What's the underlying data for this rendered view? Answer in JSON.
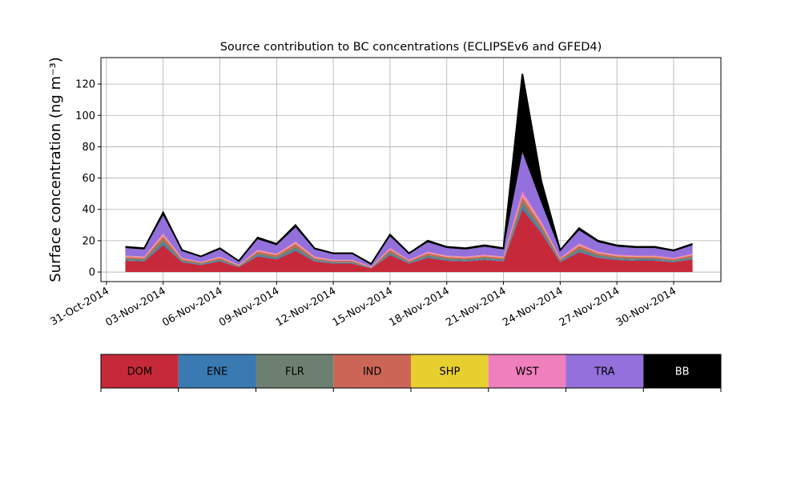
{
  "chart_data": {
    "type": "stacked_area",
    "title": "Source contribution to BC concentrations (ECLIPSEv6 and GFED4)",
    "y_label": "Surface concentration (ng m⁻³)",
    "x": [
      "2014-11-01",
      "2014-11-02",
      "2014-11-03",
      "2014-11-04",
      "2014-11-05",
      "2014-11-06",
      "2014-11-07",
      "2014-11-08",
      "2014-11-09",
      "2014-11-10",
      "2014-11-11",
      "2014-11-12",
      "2014-11-13",
      "2014-11-14",
      "2014-11-15",
      "2014-11-16",
      "2014-11-17",
      "2014-11-18",
      "2014-11-19",
      "2014-11-20",
      "2014-11-21",
      "2014-11-22",
      "2014-11-23",
      "2014-11-24",
      "2014-11-25",
      "2014-11-26",
      "2014-11-27",
      "2014-11-28",
      "2014-11-29",
      "2014-11-30",
      "2014-12-01"
    ],
    "series": [
      {
        "name": "DOM",
        "color": "#c62a3a",
        "values": [
          7.2,
          6.8,
          17.1,
          6.3,
          4.5,
          6.8,
          3.2,
          9.9,
          8.1,
          13.5,
          6.8,
          5.4,
          5.4,
          2.3,
          10.8,
          5.4,
          9,
          7.2,
          6.8,
          7.7,
          6.8,
          40,
          25,
          6.3,
          12.6,
          9,
          7.7,
          7.2,
          7.2,
          6.3,
          8.1
        ]
      },
      {
        "name": "ENE",
        "color": "#3a7ab3",
        "values": [
          0.5,
          0.5,
          1.1,
          0.4,
          0.3,
          0.5,
          0.2,
          0.7,
          0.5,
          0.9,
          0.5,
          0.4,
          0.4,
          0.2,
          0.7,
          0.4,
          0.6,
          0.5,
          0.5,
          0.5,
          0.5,
          2,
          1.2,
          0.4,
          0.8,
          0.6,
          0.5,
          0.5,
          0.5,
          0.4,
          0.5
        ]
      },
      {
        "name": "FLR",
        "color": "#6d8070",
        "values": [
          1,
          0.9,
          2.3,
          0.8,
          0.6,
          0.9,
          0.4,
          1.3,
          1.1,
          1.8,
          0.9,
          0.7,
          0.7,
          0.3,
          1.4,
          0.7,
          1.2,
          1,
          0.9,
          1,
          0.9,
          3,
          2,
          0.8,
          1.7,
          1.2,
          1,
          1,
          1,
          0.8,
          1.1
        ]
      },
      {
        "name": "IND",
        "color": "#cb6657",
        "values": [
          1,
          0.9,
          2.3,
          0.8,
          0.6,
          0.9,
          0.4,
          1.3,
          1.1,
          1.8,
          0.9,
          0.7,
          0.7,
          0.3,
          1.4,
          0.7,
          1.2,
          1,
          0.9,
          1,
          0.9,
          3,
          2,
          0.8,
          1.7,
          1.2,
          1,
          1,
          1,
          0.8,
          1.1
        ]
      },
      {
        "name": "SHP",
        "color": "#e8cf30",
        "values": [
          0.2,
          0.2,
          0.4,
          0.2,
          0.1,
          0.2,
          0.1,
          0.2,
          0.2,
          0.3,
          0.2,
          0.1,
          0.1,
          0.1,
          0.2,
          0.1,
          0.2,
          0.2,
          0.2,
          0.2,
          0.2,
          0.5,
          0.5,
          0.2,
          0.3,
          0.2,
          0.2,
          0.2,
          0.2,
          0.1,
          0.2
        ]
      },
      {
        "name": "WST",
        "color": "#f07fbd",
        "values": [
          0.6,
          0.6,
          1.5,
          0.6,
          0.4,
          0.6,
          0.3,
          0.9,
          0.7,
          1.2,
          0.6,
          0.5,
          0.5,
          0.2,
          1,
          0.5,
          0.8,
          0.6,
          0.6,
          0.7,
          0.6,
          3,
          1.5,
          0.6,
          1.1,
          0.8,
          0.7,
          0.6,
          0.6,
          0.6,
          0.7
        ]
      },
      {
        "name": "TRA",
        "color": "#9370db",
        "values": [
          4.8,
          4.5,
          11.4,
          4.2,
          3,
          4.5,
          2.1,
          6.6,
          5.4,
          9,
          4.5,
          3.6,
          3.6,
          1.5,
          7.2,
          3.6,
          6,
          4.8,
          4.5,
          5.1,
          4.5,
          25,
          12,
          4.2,
          8.4,
          6,
          5.1,
          4.8,
          4.8,
          4.2,
          5.4
        ]
      },
      {
        "name": "BB",
        "color": "#000000",
        "values": [
          0.8,
          0.8,
          2,
          0.7,
          0.5,
          0.8,
          0.4,
          1.1,
          0.9,
          1.5,
          0.8,
          0.6,
          0.6,
          0.3,
          1.2,
          0.6,
          1,
          0.8,
          0.8,
          0.9,
          0.8,
          50,
          14,
          0.7,
          1.4,
          1,
          0.9,
          0.8,
          0.8,
          0.7,
          0.9
        ]
      }
    ],
    "xlim": [
      "2014-10-30T17:00",
      "2014-12-02T12:00"
    ],
    "xticks": [
      {
        "value": "2014-10-31",
        "label": "31-Oct-2014"
      },
      {
        "value": "2014-11-03",
        "label": "03-Nov-2014"
      },
      {
        "value": "2014-11-06",
        "label": "06-Nov-2014"
      },
      {
        "value": "2014-11-09",
        "label": "09-Nov-2014"
      },
      {
        "value": "2014-11-12",
        "label": "12-Nov-2014"
      },
      {
        "value": "2014-11-15",
        "label": "15-Nov-2014"
      },
      {
        "value": "2014-11-18",
        "label": "18-Nov-2014"
      },
      {
        "value": "2014-11-21",
        "label": "21-Nov-2014"
      },
      {
        "value": "2014-11-24",
        "label": "24-Nov-2014"
      },
      {
        "value": "2014-11-27",
        "label": "27-Nov-2014"
      },
      {
        "value": "2014-11-30",
        "label": "30-Nov-2014"
      }
    ],
    "ylim": [
      -6.1,
      136.9
    ],
    "yticks": [
      0,
      20,
      40,
      60,
      80,
      100,
      120
    ],
    "grid": true
  }
}
